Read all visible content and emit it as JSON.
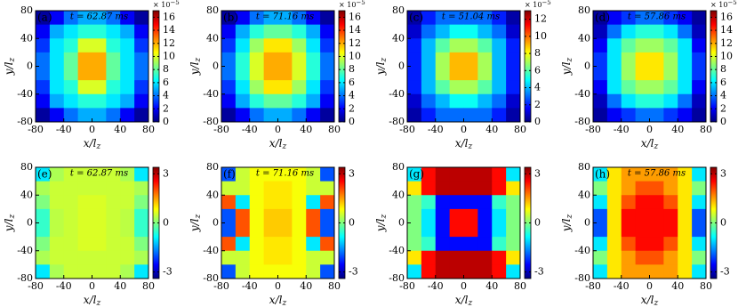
{
  "chart_data": [
    {
      "type": "heatmap",
      "label": "(a)",
      "annotation": "t = 62.87 ms",
      "cbar_scale": "× 10",
      "cbar_scale_exponent": "−5",
      "xlabel": "x/l",
      "xlabel_subscript": "z",
      "ylabel": "y/l",
      "ylabel_subscript": "z",
      "xlim": [
        -80,
        80
      ],
      "ylim": [
        -80,
        80
      ],
      "xticks": [
        -80,
        -40,
        0,
        40,
        80
      ],
      "yticks": [
        -80,
        -40,
        0,
        40,
        80
      ],
      "clim": [
        0,
        17
      ],
      "cticks": [
        0,
        2,
        4,
        6,
        8,
        10,
        12,
        14,
        16
      ],
      "x": [
        -70,
        -50,
        -30,
        -10,
        10,
        30,
        50,
        70
      ],
      "y": [
        70,
        50,
        30,
        10,
        -10,
        -30,
        -50,
        -70
      ],
      "z": [
        [
          0.5,
          2,
          4,
          5,
          5,
          4,
          2,
          0.5
        ],
        [
          2,
          5,
          6,
          7,
          7,
          6,
          5,
          2
        ],
        [
          3,
          6,
          7,
          10,
          10,
          7,
          6,
          3
        ],
        [
          4,
          6,
          8,
          12,
          12,
          8,
          6,
          4
        ],
        [
          4,
          6,
          8,
          12,
          12,
          8,
          6,
          4
        ],
        [
          3,
          6,
          7,
          10,
          10,
          7,
          6,
          3
        ],
        [
          2,
          5,
          6,
          7,
          7,
          6,
          5,
          2
        ],
        [
          0.5,
          2,
          4,
          5,
          5,
          4,
          2,
          0.5
        ]
      ]
    },
    {
      "type": "heatmap",
      "label": "(b)",
      "annotation": "t = 71.16 ms",
      "cbar_scale": "× 10",
      "cbar_scale_exponent": "−5",
      "xlabel": "x/l",
      "xlabel_subscript": "z",
      "ylabel": "y/l",
      "ylabel_subscript": "z",
      "xlim": [
        -80,
        80
      ],
      "ylim": [
        -80,
        80
      ],
      "xticks": [
        -80,
        -40,
        0,
        40,
        80
      ],
      "yticks": [
        -80,
        -40,
        0,
        40,
        80
      ],
      "clim": [
        0,
        17
      ],
      "cticks": [
        0,
        2,
        4,
        6,
        8,
        10,
        12,
        14,
        16
      ],
      "x": [
        -70,
        -50,
        -30,
        -10,
        10,
        30,
        50,
        70
      ],
      "y": [
        70,
        50,
        30,
        10,
        -10,
        -30,
        -50,
        -70
      ],
      "z": [
        [
          0.5,
          2,
          4,
          5,
          5,
          4,
          2,
          0.5
        ],
        [
          2,
          5,
          7,
          8,
          8,
          7,
          5,
          2
        ],
        [
          3,
          6,
          9,
          11,
          11,
          9,
          6,
          3
        ],
        [
          4,
          7,
          10,
          12,
          12,
          10,
          7,
          4
        ],
        [
          4,
          7,
          10,
          12,
          12,
          10,
          7,
          4
        ],
        [
          3,
          6,
          9,
          11,
          11,
          9,
          6,
          3
        ],
        [
          2,
          5,
          7,
          8,
          8,
          7,
          5,
          2
        ],
        [
          0.5,
          2,
          4,
          5,
          5,
          4,
          2,
          0.5
        ]
      ]
    },
    {
      "type": "heatmap",
      "label": "(c)",
      "annotation": "t = 51.04 ms",
      "cbar_scale": "× 10",
      "cbar_scale_exponent": "−5",
      "xlabel": "x/l",
      "xlabel_subscript": "z",
      "ylabel": "y/l",
      "ylabel_subscript": "z",
      "xlim": [
        -80,
        80
      ],
      "ylim": [
        -80,
        80
      ],
      "xticks": [
        -80,
        -40,
        0,
        40,
        80
      ],
      "yticks": [
        -80,
        -40,
        0,
        40,
        80
      ],
      "clim": [
        0,
        13
      ],
      "cticks": [
        0,
        2,
        4,
        6,
        8,
        10,
        12
      ],
      "x": [
        -70,
        -50,
        -30,
        -10,
        10,
        30,
        50,
        70
      ],
      "y": [
        70,
        50,
        30,
        10,
        -10,
        -30,
        -50,
        -70
      ],
      "z": [
        [
          0.5,
          2,
          3,
          3,
          3,
          3,
          2,
          0.5
        ],
        [
          1,
          3,
          4,
          5,
          5,
          4,
          3,
          1
        ],
        [
          2,
          4,
          6,
          7,
          7,
          6,
          4,
          2
        ],
        [
          2,
          4,
          7,
          9,
          9,
          7,
          4,
          2
        ],
        [
          2,
          4,
          7,
          9,
          9,
          7,
          4,
          2
        ],
        [
          2,
          4,
          6,
          7,
          7,
          6,
          4,
          2
        ],
        [
          1,
          3,
          4,
          5,
          5,
          4,
          3,
          1
        ],
        [
          0.5,
          2,
          3,
          3,
          3,
          3,
          2,
          0.5
        ]
      ]
    },
    {
      "type": "heatmap",
      "label": "(d)",
      "annotation": "t = 57.86 ms",
      "cbar_scale": "× 10",
      "cbar_scale_exponent": "−5",
      "xlabel": "x/l",
      "xlabel_subscript": "z",
      "ylabel": "y/l",
      "ylabel_subscript": "z",
      "xlim": [
        -80,
        80
      ],
      "ylim": [
        -80,
        80
      ],
      "xticks": [
        -80,
        -40,
        0,
        40,
        80
      ],
      "yticks": [
        -80,
        -40,
        0,
        40,
        80
      ],
      "clim": [
        0,
        17
      ],
      "cticks": [
        0,
        2,
        4,
        6,
        8,
        10,
        12,
        14,
        16
      ],
      "x": [
        -70,
        -50,
        -30,
        -10,
        10,
        30,
        50,
        70
      ],
      "y": [
        70,
        50,
        30,
        10,
        -10,
        -30,
        -50,
        -70
      ],
      "z": [
        [
          0.5,
          2,
          3,
          4,
          4,
          3,
          2,
          0.5
        ],
        [
          1,
          4,
          6,
          7,
          7,
          6,
          4,
          1
        ],
        [
          2,
          6,
          8,
          9,
          9,
          8,
          6,
          2
        ],
        [
          3,
          6,
          9,
          11,
          11,
          9,
          6,
          3
        ],
        [
          3,
          6,
          9,
          11,
          11,
          9,
          6,
          3
        ],
        [
          2,
          6,
          8,
          9,
          9,
          8,
          6,
          2
        ],
        [
          1,
          4,
          6,
          7,
          7,
          6,
          4,
          1
        ],
        [
          0.5,
          2,
          3,
          4,
          4,
          3,
          2,
          0.5
        ]
      ]
    },
    {
      "type": "heatmap",
      "label": "(e)",
      "annotation": "t = 62.87 ms",
      "xlabel": "x/l",
      "xlabel_subscript": "z",
      "ylabel": "y/l",
      "ylabel_subscript": "z",
      "xlim": [
        -80,
        80
      ],
      "ylim": [
        -80,
        80
      ],
      "xticks": [
        -80,
        -40,
        0,
        40,
        80
      ],
      "yticks": [
        -80,
        -40,
        0,
        40,
        80
      ],
      "clim": [
        -3.4,
        3.4
      ],
      "cticks": [
        -3,
        0,
        3
      ],
      "x": [
        -70,
        -50,
        -30,
        -10,
        10,
        30,
        50,
        70
      ],
      "y": [
        70,
        50,
        30,
        10,
        -10,
        -30,
        -50,
        -70
      ],
      "z": [
        [
          -1,
          0.3,
          0.5,
          0.5,
          0.5,
          0.5,
          0.3,
          -1
        ],
        [
          0.3,
          0.5,
          0.5,
          0.5,
          0.5,
          0.5,
          0.5,
          0.3
        ],
        [
          0,
          0.5,
          0.5,
          0.6,
          0.6,
          0.5,
          0.5,
          0
        ],
        [
          -0.5,
          0.4,
          0.5,
          0.6,
          0.6,
          0.5,
          0.4,
          -0.5
        ],
        [
          -0.5,
          0.4,
          0.5,
          0.6,
          0.6,
          0.5,
          0.4,
          -0.5
        ],
        [
          0,
          0.5,
          0.5,
          0.6,
          0.6,
          0.5,
          0.5,
          0
        ],
        [
          0.3,
          0.5,
          0.5,
          0.5,
          0.5,
          0.5,
          0.5,
          0.3
        ],
        [
          -1,
          0.3,
          0.5,
          0.5,
          0.5,
          0.5,
          0.3,
          -1
        ]
      ]
    },
    {
      "type": "heatmap",
      "label": "(f)",
      "annotation": "t = 71.16 ms",
      "xlabel": "x/l",
      "xlabel_subscript": "z",
      "ylabel": "y/l",
      "ylabel_subscript": "z",
      "xlim": [
        -80,
        80
      ],
      "ylim": [
        -80,
        80
      ],
      "xticks": [
        -80,
        -40,
        0,
        40,
        80
      ],
      "yticks": [
        -80,
        -40,
        0,
        40,
        80
      ],
      "clim": [
        -3.4,
        3.4
      ],
      "cticks": [
        -3,
        0,
        3
      ],
      "x": [
        -70,
        -50,
        -30,
        -10,
        10,
        30,
        50,
        70
      ],
      "y": [
        70,
        50,
        30,
        10,
        -10,
        -30,
        -50,
        -70
      ],
      "z": [
        [
          -2,
          0.5,
          0.8,
          0.8,
          0.8,
          0.8,
          0.5,
          -2
        ],
        [
          0.5,
          0.5,
          0.8,
          1,
          1,
          0.8,
          0.5,
          0.5
        ],
        [
          2,
          -1,
          0.8,
          1,
          1,
          0.8,
          -1,
          2
        ],
        [
          -2,
          2,
          0.8,
          1.2,
          1.2,
          0.8,
          2,
          -2
        ],
        [
          -2,
          2,
          0.8,
          1.2,
          1.2,
          0.8,
          2,
          -2
        ],
        [
          2,
          -1,
          0.8,
          1,
          1,
          0.8,
          -1,
          2
        ],
        [
          0.5,
          0.5,
          0.8,
          1,
          1,
          0.8,
          0.5,
          0.5
        ],
        [
          -2,
          0.5,
          0.8,
          0.8,
          0.8,
          0.8,
          0.5,
          -2
        ]
      ]
    },
    {
      "type": "heatmap",
      "label": "(g)",
      "xlabel": "x/l",
      "xlabel_subscript": "z",
      "ylabel": "y/l",
      "ylabel_subscript": "z",
      "xlim": [
        -80,
        80
      ],
      "ylim": [
        -80,
        80
      ],
      "xticks": [
        -80,
        -40,
        0,
        40,
        80
      ],
      "yticks": [
        -80,
        -40,
        0,
        40,
        80
      ],
      "clim": [
        -3.4,
        3.4
      ],
      "cticks": [
        -3,
        0,
        3
      ],
      "x": [
        -70,
        -50,
        -30,
        -10,
        10,
        30,
        50,
        70
      ],
      "y": [
        70,
        50,
        30,
        10,
        -10,
        -30,
        -50,
        -70
      ],
      "z": [
        [
          -1,
          2.5,
          3,
          3,
          3,
          3,
          2.5,
          -1
        ],
        [
          1,
          2.5,
          3,
          3,
          3,
          3,
          2.5,
          1
        ],
        [
          0,
          -0.5,
          -2.5,
          -2.5,
          -2.5,
          -2.5,
          -0.5,
          0
        ],
        [
          0,
          -1,
          -2.5,
          2.5,
          2.5,
          -2.5,
          -1,
          0
        ],
        [
          0,
          -1,
          -2.5,
          2.5,
          2.5,
          -2.5,
          -1,
          0
        ],
        [
          0,
          -0.5,
          -2.5,
          -2.5,
          -2.5,
          -2.5,
          -0.5,
          0
        ],
        [
          1,
          2.5,
          3,
          3,
          3,
          3,
          2.5,
          1
        ],
        [
          -1,
          2.5,
          3,
          3,
          3,
          3,
          2.5,
          -1
        ]
      ]
    },
    {
      "type": "heatmap",
      "label": "(h)",
      "annotation": "t = 57.86 ms",
      "xlabel": "x/l",
      "xlabel_subscript": "z",
      "ylabel": "y/l",
      "ylabel_subscript": "z",
      "xlim": [
        -80,
        80
      ],
      "ylim": [
        -80,
        80
      ],
      "xticks": [
        -80,
        -40,
        0,
        40,
        80
      ],
      "yticks": [
        -80,
        -40,
        0,
        40,
        80
      ],
      "clim": [
        -3.4,
        3.4
      ],
      "cticks": [
        -3,
        0,
        3
      ],
      "x": [
        -70,
        -50,
        -30,
        -10,
        10,
        30,
        50,
        70
      ],
      "y": [
        70,
        50,
        30,
        10,
        -10,
        -30,
        -50,
        -70
      ],
      "z": [
        [
          -1,
          1,
          1.5,
          1.5,
          1.5,
          1.5,
          1,
          -1
        ],
        [
          0,
          1,
          1.5,
          2,
          2,
          1.5,
          1,
          0
        ],
        [
          -1,
          1,
          2,
          2.5,
          2.5,
          2,
          1,
          -1
        ],
        [
          -2,
          1,
          2.5,
          2.5,
          2.5,
          2.5,
          1,
          -2
        ],
        [
          -2,
          1,
          2.5,
          2.5,
          2.5,
          2.5,
          1,
          -2
        ],
        [
          -1,
          1,
          2,
          2.5,
          2.5,
          2,
          1,
          -1
        ],
        [
          0,
          1,
          1.5,
          2,
          2,
          1.5,
          1,
          0
        ],
        [
          -1,
          1,
          1.5,
          1.5,
          1.5,
          1.5,
          1,
          -1
        ]
      ]
    }
  ]
}
